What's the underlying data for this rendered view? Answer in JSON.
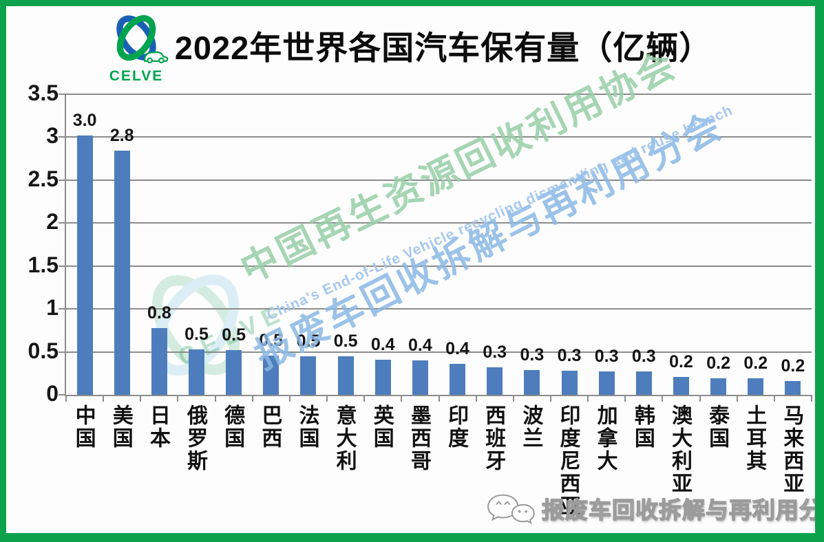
{
  "page": {
    "border_color": "#0ca24c",
    "background": "#fdfdfd"
  },
  "logo": {
    "text": "CELVE",
    "blue": "#1b5fb5",
    "green": "#00a44f"
  },
  "chart_data": {
    "type": "bar",
    "title": "2022年世界各国汽车保有量（亿辆）",
    "unit": "亿辆",
    "categories": [
      "中国",
      "美国",
      "日本",
      "俄罗斯",
      "德国",
      "巴西",
      "法国",
      "意大利",
      "英国",
      "墨西哥",
      "印度",
      "西班牙",
      "波兰",
      "印度尼西亚",
      "加拿大",
      "韩国",
      "澳大利亚",
      "泰国",
      "土耳其",
      "马来西亚"
    ],
    "values": [
      3.0,
      2.8,
      0.8,
      0.5,
      0.5,
      0.5,
      0.5,
      0.5,
      0.4,
      0.4,
      0.4,
      0.3,
      0.3,
      0.3,
      0.3,
      0.3,
      0.2,
      0.2,
      0.2,
      0.2
    ],
    "value_labels": [
      "3.0",
      "2.8",
      "0.8",
      "0.5",
      "0.5",
      "0.5",
      "0.5",
      "0.5",
      "0.4",
      "0.4",
      "0.4",
      "0.3",
      "0.3",
      "0.3",
      "0.3",
      "0.3",
      "0.2",
      "0.2",
      "0.2",
      "0.2"
    ],
    "bar_heights_est": [
      3.02,
      2.84,
      0.78,
      0.53,
      0.52,
      0.46,
      0.45,
      0.45,
      0.41,
      0.4,
      0.36,
      0.32,
      0.29,
      0.28,
      0.27,
      0.27,
      0.21,
      0.19,
      0.19,
      0.16
    ],
    "y_ticks": [
      "3.5",
      "3",
      "2.5",
      "2",
      "1.5",
      "1",
      "0.5",
      "0"
    ],
    "ylim": [
      0,
      3.5
    ],
    "grid": true,
    "legend": false,
    "bar_color": "#4d7dbc",
    "gridline_color": "#8c8c8c"
  },
  "watermarks": {
    "diagonal_line1": "中国再生资源回收利用协会",
    "diagonal_line2": "报废车回收拆解与再利用分会",
    "diagonal_line_en": "China's End-of-Life Vehicle recycling dismantling and reuse branch",
    "center_logo_text": "CELVE",
    "footer_text": "报废车回收拆解与再利用分会",
    "green": "#97cfa8",
    "blue": "#8ab8e5",
    "light_blue": "#a3c6ee"
  }
}
